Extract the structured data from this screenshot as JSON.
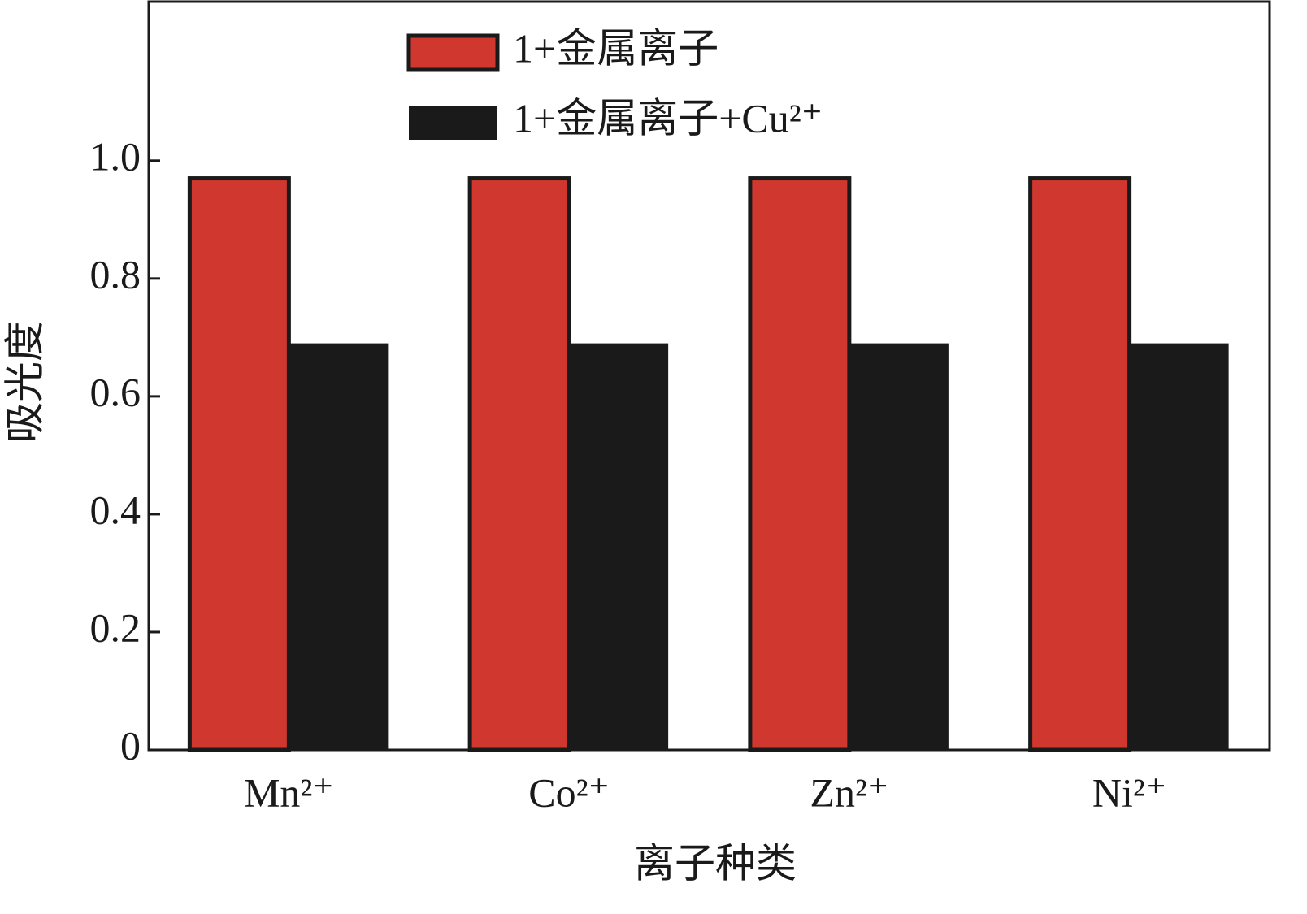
{
  "chart_data": {
    "type": "bar",
    "x_label": "离子种类",
    "y_label": "吸光度",
    "categories": [
      "Mn²⁺",
      "Co²⁺",
      "Zn²⁺",
      "Ni²⁺"
    ],
    "series": [
      {
        "name": "1+金属离子",
        "color": "#d0372e",
        "values": [
          0.97,
          0.97,
          0.97,
          0.97
        ]
      },
      {
        "name": "1+金属离子+Cu²⁺",
        "color": "#1a1a1a",
        "values": [
          0.69,
          0.69,
          0.69,
          0.69
        ]
      }
    ],
    "ylim": [
      0,
      1.27
    ],
    "yticks": [
      0,
      0.2,
      0.4,
      0.6,
      0.8,
      {
        "value": 1,
        "label": "1.0"
      }
    ],
    "legend": "upper center"
  }
}
